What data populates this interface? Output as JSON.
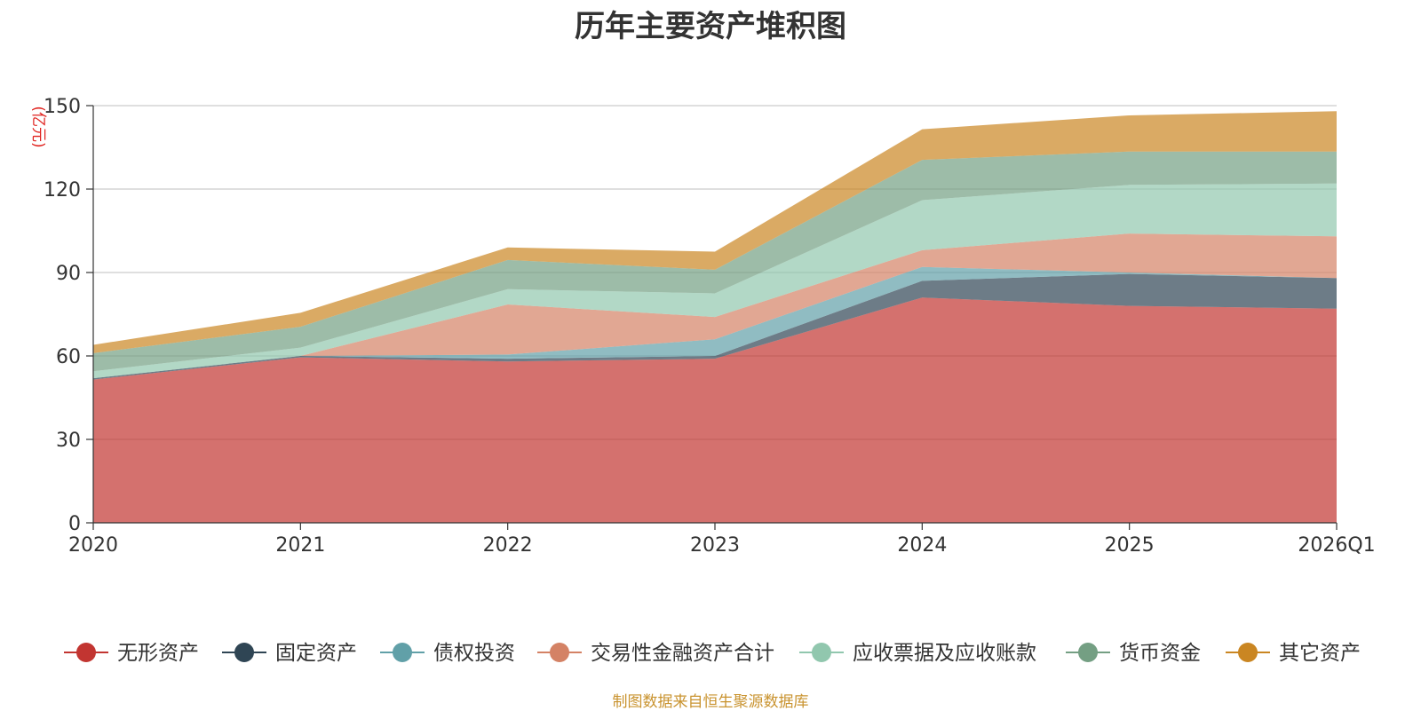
{
  "chart_data": {
    "type": "area",
    "stacked": true,
    "title": "历年主要资产堆积图",
    "unit_label": "(亿元)",
    "source": "制图数据来自恒生聚源数据库",
    "categories": [
      "2020",
      "2021",
      "2022",
      "2023",
      "2024",
      "2025",
      "2026Q1"
    ],
    "ylim": [
      0,
      150
    ],
    "yticks": [
      0,
      30,
      60,
      90,
      120,
      150
    ],
    "grid": true,
    "legend_position": "bottom",
    "series": [
      {
        "name": "无形资产",
        "color": "#c23531",
        "values": [
          51.5,
          59.5,
          58,
          59,
          81,
          78,
          77
        ]
      },
      {
        "name": "固定资产",
        "color": "#2f4554",
        "values": [
          0.5,
          0.5,
          1,
          1,
          6,
          11.5,
          11
        ]
      },
      {
        "name": "债权投资",
        "color": "#61a0a8",
        "values": [
          0,
          0,
          1.5,
          6,
          5,
          0.5,
          0
        ]
      },
      {
        "name": "交易性金融资产合计",
        "color": "#d48265",
        "values": [
          0,
          0,
          18,
          8,
          6,
          14,
          15
        ]
      },
      {
        "name": "应收票据及应收账款",
        "color": "#91c7ae",
        "values": [
          2.5,
          3,
          5.5,
          8.5,
          18,
          17.5,
          19
        ]
      },
      {
        "name": "货币资金",
        "color": "#749f83",
        "values": [
          6.5,
          7.5,
          10.5,
          8.5,
          14.5,
          12,
          11.5
        ]
      },
      {
        "name": "其它资产",
        "color": "#ca8622",
        "values": [
          3,
          5,
          4.5,
          6.5,
          11,
          13,
          14.5
        ]
      }
    ]
  }
}
